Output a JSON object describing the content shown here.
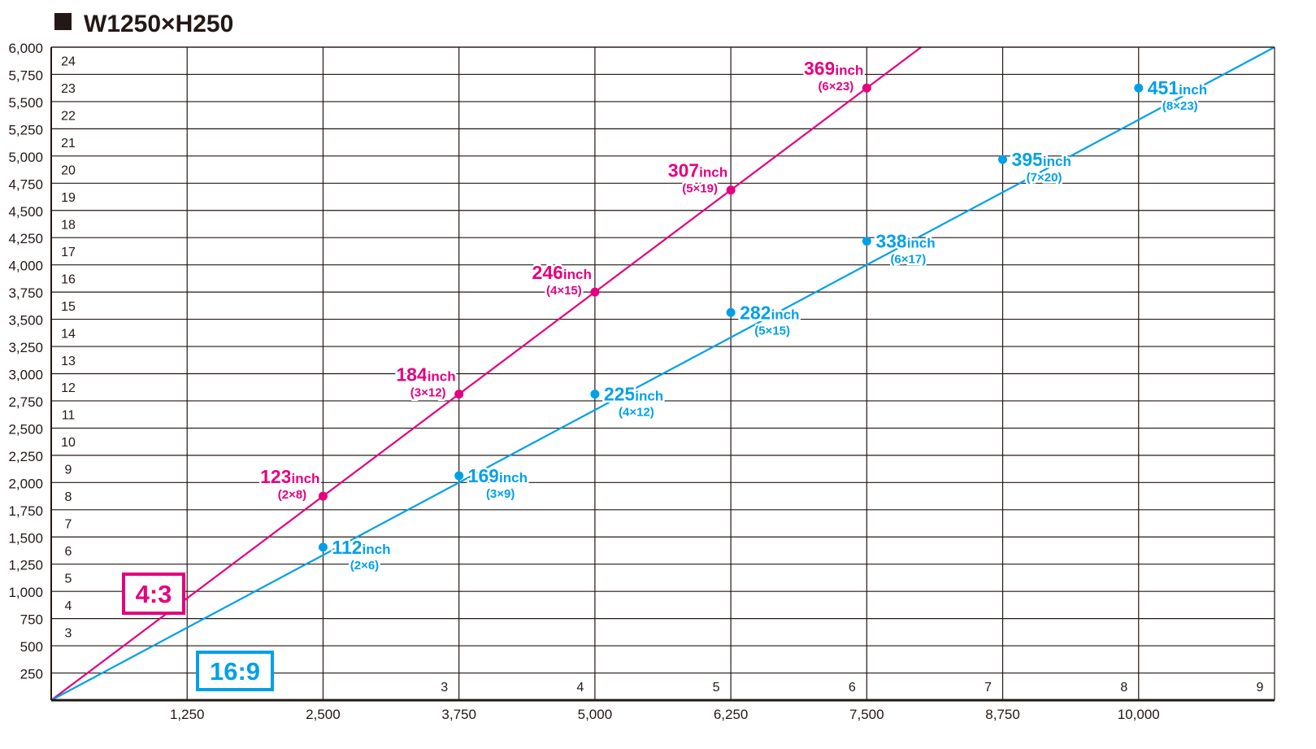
{
  "title": "W1250×H250",
  "colors": {
    "series_43": "#e4007f",
    "series_169": "#00a0e9",
    "grid": "#231815",
    "text": "#231815"
  },
  "chart_data": {
    "type": "line",
    "title": "W1250×H250",
    "xlim": [
      0,
      11250
    ],
    "ylim": [
      0,
      6000
    ],
    "x_ticks": [
      "1,250",
      "2,500",
      "3,750",
      "5,000",
      "6,250",
      "7,500",
      "8,750",
      "10,000"
    ],
    "y_ticks": [
      "250",
      "500",
      "750",
      "1,000",
      "1,250",
      "1,500",
      "1,750",
      "2,000",
      "2,250",
      "2,500",
      "2,750",
      "3,000",
      "3,250",
      "3,500",
      "3,750",
      "4,000",
      "4,250",
      "4,500",
      "4,750",
      "5,000",
      "5,250",
      "5,500",
      "5,750",
      "6,000"
    ],
    "x_secondary_ticks": [
      "3",
      "4",
      "5",
      "6",
      "7",
      "8",
      "9"
    ],
    "y_secondary_ticks": [
      "3",
      "4",
      "5",
      "6",
      "7",
      "8",
      "9",
      "10",
      "11",
      "12",
      "13",
      "14",
      "15",
      "16",
      "17",
      "18",
      "19",
      "20",
      "21",
      "22",
      "23",
      "24"
    ],
    "grid": true,
    "series": [
      {
        "name": "4:3",
        "color": "#e4007f",
        "line_end": [
          8000,
          6000
        ],
        "points": [
          {
            "x": 2500,
            "y": 1875,
            "size": "123",
            "unit": "inch",
            "panels": "(2×8)"
          },
          {
            "x": 3750,
            "y": 2812,
            "size": "184",
            "unit": "inch",
            "panels": "(3×12)"
          },
          {
            "x": 5000,
            "y": 3750,
            "size": "246",
            "unit": "inch",
            "panels": "(4×15)"
          },
          {
            "x": 6250,
            "y": 4687,
            "size": "307",
            "unit": "inch",
            "panels": "(5×19)"
          },
          {
            "x": 7500,
            "y": 5625,
            "size": "369",
            "unit": "inch",
            "panels": "(6×23)"
          }
        ]
      },
      {
        "name": "16:9",
        "color": "#00a0e9",
        "line_end": [
          11250,
          6000
        ],
        "points": [
          {
            "x": 2500,
            "y": 1406,
            "size": "112",
            "unit": "inch",
            "panels": "(2×6)"
          },
          {
            "x": 3750,
            "y": 2062,
            "size": "169",
            "unit": "inch",
            "panels": "(3×9)"
          },
          {
            "x": 5000,
            "y": 2812,
            "size": "225",
            "unit": "inch",
            "panels": "(4×12)"
          },
          {
            "x": 6250,
            "y": 3562,
            "size": "282",
            "unit": "inch",
            "panels": "(5×15)"
          },
          {
            "x": 7500,
            "y": 4218,
            "size": "338",
            "unit": "inch",
            "panels": "(6×17)"
          },
          {
            "x": 8750,
            "y": 4968,
            "size": "395",
            "unit": "inch",
            "panels": "(7×20)"
          },
          {
            "x": 10000,
            "y": 5625,
            "size": "451",
            "unit": "inch",
            "panels": "(8×23)"
          }
        ]
      }
    ]
  }
}
